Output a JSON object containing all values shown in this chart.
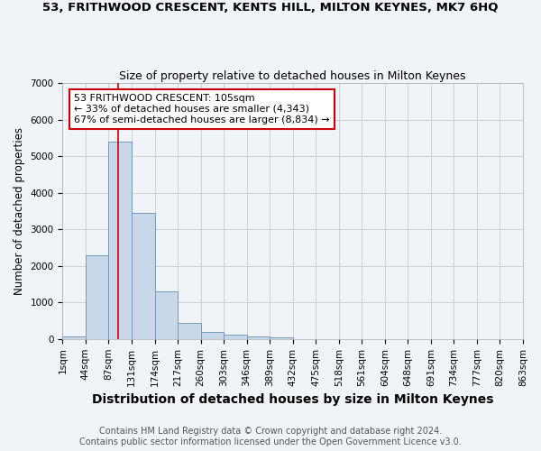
{
  "title": "53, FRITHWOOD CRESCENT, KENTS HILL, MILTON KEYNES, MK7 6HQ",
  "subtitle": "Size of property relative to detached houses in Milton Keynes",
  "xlabel": "Distribution of detached houses by size in Milton Keynes",
  "ylabel": "Number of detached properties",
  "bar_values": [
    75,
    2300,
    5400,
    3450,
    1300,
    450,
    200,
    125,
    75,
    50,
    0,
    0,
    0,
    0,
    0,
    0,
    0,
    0,
    0,
    0
  ],
  "bar_labels": [
    "1sqm",
    "44sqm",
    "87sqm",
    "131sqm",
    "174sqm",
    "217sqm",
    "260sqm",
    "303sqm",
    "346sqm",
    "389sqm",
    "432sqm",
    "475sqm",
    "518sqm",
    "561sqm",
    "604sqm",
    "648sqm",
    "691sqm",
    "734sqm",
    "777sqm",
    "820sqm",
    "863sqm"
  ],
  "bar_color": "#c8d8e8",
  "bar_edge_color": "#7799bb",
  "grid_color": "#cccccc",
  "background_color": "#f0f4f8",
  "red_line_x": 2.41,
  "annotation_text": "53 FRITHWOOD CRESCENT: 105sqm\n← 33% of detached houses are smaller (4,343)\n67% of semi-detached houses are larger (8,834) →",
  "annotation_box_color": "#ffffff",
  "annotation_border_color": "#cc0000",
  "footer_line1": "Contains HM Land Registry data © Crown copyright and database right 2024.",
  "footer_line2": "Contains public sector information licensed under the Open Government Licence v3.0.",
  "ylim": [
    0,
    7000
  ],
  "title_fontsize": 9.5,
  "subtitle_fontsize": 9,
  "xlabel_fontsize": 10,
  "ylabel_fontsize": 8.5,
  "tick_fontsize": 7.5,
  "footer_fontsize": 7,
  "annot_fontsize": 8
}
